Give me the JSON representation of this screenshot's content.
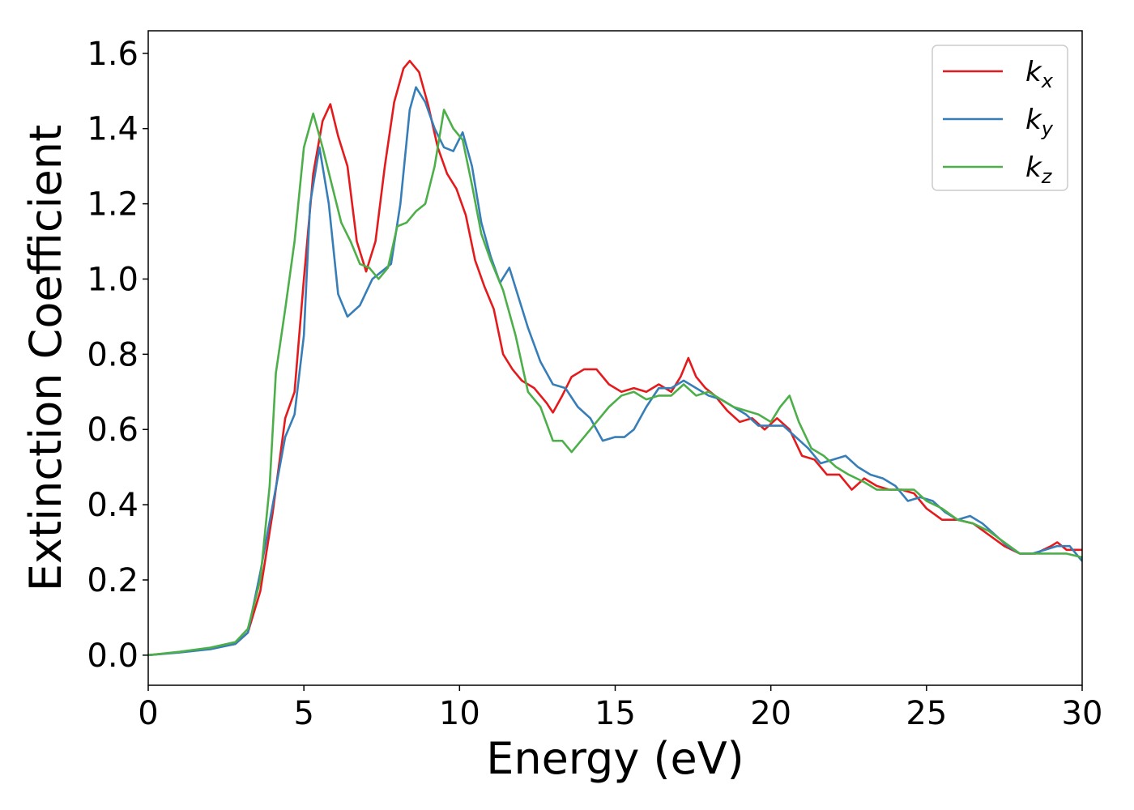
{
  "chart_data": {
    "type": "line",
    "xlabel": "Energy (eV)",
    "ylabel": "Extinction Coefficient",
    "xlim": [
      0,
      30
    ],
    "ylim": [
      -0.08,
      1.66
    ],
    "x_ticks": [
      0,
      5,
      10,
      15,
      20,
      25,
      30
    ],
    "x_tick_labels": [
      "0",
      "5",
      "10",
      "15",
      "20",
      "25",
      "30"
    ],
    "y_ticks": [
      0.0,
      0.2,
      0.4,
      0.6,
      0.8,
      1.0,
      1.2,
      1.4,
      1.6
    ],
    "y_tick_labels": [
      "0.0",
      "0.2",
      "0.4",
      "0.6",
      "0.8",
      "1.0",
      "1.2",
      "1.4",
      "1.6"
    ],
    "grid": false,
    "legend_position": "top-right",
    "series": [
      {
        "name": "k_x",
        "legend_base": "k",
        "legend_sub": "x",
        "color": "#e41a1c",
        "points": [
          [
            0,
            0.0
          ],
          [
            1,
            0.008
          ],
          [
            2,
            0.018
          ],
          [
            2.8,
            0.03
          ],
          [
            3.2,
            0.06
          ],
          [
            3.6,
            0.17
          ],
          [
            4,
            0.38
          ],
          [
            4.4,
            0.63
          ],
          [
            4.7,
            0.7
          ],
          [
            5,
            1.0
          ],
          [
            5.3,
            1.28
          ],
          [
            5.6,
            1.42
          ],
          [
            5.85,
            1.465
          ],
          [
            6.1,
            1.38
          ],
          [
            6.4,
            1.3
          ],
          [
            6.7,
            1.1
          ],
          [
            7,
            1.02
          ],
          [
            7.3,
            1.1
          ],
          [
            7.6,
            1.3
          ],
          [
            7.9,
            1.47
          ],
          [
            8.2,
            1.56
          ],
          [
            8.4,
            1.58
          ],
          [
            8.7,
            1.55
          ],
          [
            9,
            1.46
          ],
          [
            9.3,
            1.35
          ],
          [
            9.6,
            1.28
          ],
          [
            9.9,
            1.24
          ],
          [
            10.2,
            1.17
          ],
          [
            10.5,
            1.05
          ],
          [
            10.8,
            0.98
          ],
          [
            11.1,
            0.92
          ],
          [
            11.4,
            0.8
          ],
          [
            11.7,
            0.76
          ],
          [
            12,
            0.73
          ],
          [
            12.4,
            0.71
          ],
          [
            12.8,
            0.67
          ],
          [
            13,
            0.645
          ],
          [
            13.3,
            0.69
          ],
          [
            13.6,
            0.74
          ],
          [
            14,
            0.76
          ],
          [
            14.4,
            0.76
          ],
          [
            14.8,
            0.72
          ],
          [
            15.2,
            0.7
          ],
          [
            15.6,
            0.71
          ],
          [
            16,
            0.7
          ],
          [
            16.4,
            0.72
          ],
          [
            16.8,
            0.7
          ],
          [
            17.1,
            0.74
          ],
          [
            17.35,
            0.79
          ],
          [
            17.6,
            0.74
          ],
          [
            17.9,
            0.71
          ],
          [
            18.2,
            0.69
          ],
          [
            18.6,
            0.65
          ],
          [
            19,
            0.62
          ],
          [
            19.4,
            0.63
          ],
          [
            19.8,
            0.6
          ],
          [
            20.2,
            0.63
          ],
          [
            20.6,
            0.6
          ],
          [
            21,
            0.53
          ],
          [
            21.4,
            0.52
          ],
          [
            21.8,
            0.48
          ],
          [
            22.2,
            0.48
          ],
          [
            22.6,
            0.44
          ],
          [
            23,
            0.47
          ],
          [
            23.4,
            0.45
          ],
          [
            23.8,
            0.44
          ],
          [
            24.2,
            0.44
          ],
          [
            24.6,
            0.43
          ],
          [
            25,
            0.39
          ],
          [
            25.5,
            0.36
          ],
          [
            26,
            0.36
          ],
          [
            26.5,
            0.35
          ],
          [
            27,
            0.32
          ],
          [
            27.5,
            0.29
          ],
          [
            28,
            0.27
          ],
          [
            28.5,
            0.27
          ],
          [
            29,
            0.29
          ],
          [
            29.2,
            0.3
          ],
          [
            29.5,
            0.28
          ],
          [
            30,
            0.28
          ]
        ]
      },
      {
        "name": "k_y",
        "legend_base": "k",
        "legend_sub": "y",
        "color": "#377eb8",
        "points": [
          [
            0,
            0.0
          ],
          [
            1,
            0.007
          ],
          [
            2,
            0.016
          ],
          [
            2.8,
            0.03
          ],
          [
            3.2,
            0.06
          ],
          [
            3.6,
            0.22
          ],
          [
            4,
            0.4
          ],
          [
            4.4,
            0.58
          ],
          [
            4.7,
            0.64
          ],
          [
            5,
            0.85
          ],
          [
            5.2,
            1.2
          ],
          [
            5.5,
            1.35
          ],
          [
            5.8,
            1.2
          ],
          [
            6.1,
            0.96
          ],
          [
            6.4,
            0.9
          ],
          [
            6.8,
            0.93
          ],
          [
            7.2,
            1.0
          ],
          [
            7.5,
            1.02
          ],
          [
            7.8,
            1.04
          ],
          [
            8.1,
            1.2
          ],
          [
            8.4,
            1.45
          ],
          [
            8.6,
            1.51
          ],
          [
            8.9,
            1.47
          ],
          [
            9.2,
            1.4
          ],
          [
            9.5,
            1.35
          ],
          [
            9.8,
            1.34
          ],
          [
            10.1,
            1.39
          ],
          [
            10.4,
            1.3
          ],
          [
            10.7,
            1.15
          ],
          [
            11,
            1.06
          ],
          [
            11.3,
            0.99
          ],
          [
            11.6,
            1.03
          ],
          [
            11.9,
            0.95
          ],
          [
            12.2,
            0.87
          ],
          [
            12.6,
            0.78
          ],
          [
            13,
            0.72
          ],
          [
            13.4,
            0.71
          ],
          [
            13.8,
            0.66
          ],
          [
            14.2,
            0.63
          ],
          [
            14.6,
            0.57
          ],
          [
            15,
            0.58
          ],
          [
            15.3,
            0.58
          ],
          [
            15.6,
            0.6
          ],
          [
            16,
            0.66
          ],
          [
            16.4,
            0.71
          ],
          [
            16.8,
            0.71
          ],
          [
            17.2,
            0.73
          ],
          [
            17.6,
            0.71
          ],
          [
            18,
            0.69
          ],
          [
            18.4,
            0.68
          ],
          [
            18.8,
            0.66
          ],
          [
            19.2,
            0.64
          ],
          [
            19.6,
            0.61
          ],
          [
            20,
            0.61
          ],
          [
            20.4,
            0.61
          ],
          [
            20.8,
            0.58
          ],
          [
            21.2,
            0.55
          ],
          [
            21.6,
            0.51
          ],
          [
            22,
            0.52
          ],
          [
            22.4,
            0.53
          ],
          [
            22.8,
            0.5
          ],
          [
            23.2,
            0.48
          ],
          [
            23.6,
            0.47
          ],
          [
            24,
            0.45
          ],
          [
            24.4,
            0.41
          ],
          [
            24.8,
            0.42
          ],
          [
            25.2,
            0.41
          ],
          [
            25.6,
            0.38
          ],
          [
            26,
            0.36
          ],
          [
            26.4,
            0.37
          ],
          [
            26.8,
            0.35
          ],
          [
            27.2,
            0.32
          ],
          [
            27.6,
            0.29
          ],
          [
            28,
            0.27
          ],
          [
            28.4,
            0.27
          ],
          [
            28.8,
            0.28
          ],
          [
            29.2,
            0.29
          ],
          [
            29.6,
            0.29
          ],
          [
            30,
            0.25
          ]
        ]
      },
      {
        "name": "k_z",
        "legend_base": "k",
        "legend_sub": "z",
        "color": "#4daf4a",
        "points": [
          [
            0,
            0.0
          ],
          [
            1,
            0.009
          ],
          [
            2,
            0.02
          ],
          [
            2.8,
            0.035
          ],
          [
            3.2,
            0.07
          ],
          [
            3.6,
            0.2
          ],
          [
            3.9,
            0.45
          ],
          [
            4.1,
            0.75
          ],
          [
            4.4,
            0.92
          ],
          [
            4.7,
            1.1
          ],
          [
            5,
            1.35
          ],
          [
            5.3,
            1.44
          ],
          [
            5.6,
            1.35
          ],
          [
            5.9,
            1.25
          ],
          [
            6.2,
            1.15
          ],
          [
            6.5,
            1.1
          ],
          [
            6.8,
            1.04
          ],
          [
            7.1,
            1.03
          ],
          [
            7.4,
            1.0
          ],
          [
            7.7,
            1.03
          ],
          [
            8,
            1.14
          ],
          [
            8.3,
            1.15
          ],
          [
            8.6,
            1.18
          ],
          [
            8.9,
            1.2
          ],
          [
            9.2,
            1.3
          ],
          [
            9.5,
            1.45
          ],
          [
            9.8,
            1.4
          ],
          [
            10.1,
            1.37
          ],
          [
            10.4,
            1.25
          ],
          [
            10.7,
            1.12
          ],
          [
            11,
            1.05
          ],
          [
            11.4,
            0.97
          ],
          [
            11.8,
            0.85
          ],
          [
            12.2,
            0.7
          ],
          [
            12.6,
            0.66
          ],
          [
            13,
            0.57
          ],
          [
            13.3,
            0.57
          ],
          [
            13.6,
            0.54
          ],
          [
            14,
            0.58
          ],
          [
            14.4,
            0.62
          ],
          [
            14.8,
            0.66
          ],
          [
            15.2,
            0.69
          ],
          [
            15.6,
            0.7
          ],
          [
            16,
            0.68
          ],
          [
            16.4,
            0.69
          ],
          [
            16.8,
            0.69
          ],
          [
            17.2,
            0.72
          ],
          [
            17.6,
            0.69
          ],
          [
            18,
            0.7
          ],
          [
            18.4,
            0.68
          ],
          [
            18.8,
            0.66
          ],
          [
            19.2,
            0.65
          ],
          [
            19.6,
            0.64
          ],
          [
            20,
            0.62
          ],
          [
            20.3,
            0.66
          ],
          [
            20.6,
            0.69
          ],
          [
            20.9,
            0.62
          ],
          [
            21.3,
            0.55
          ],
          [
            21.7,
            0.53
          ],
          [
            22.1,
            0.5
          ],
          [
            22.5,
            0.48
          ],
          [
            23,
            0.46
          ],
          [
            23.4,
            0.44
          ],
          [
            23.8,
            0.44
          ],
          [
            24.2,
            0.44
          ],
          [
            24.6,
            0.44
          ],
          [
            25,
            0.41
          ],
          [
            25.5,
            0.39
          ],
          [
            26,
            0.36
          ],
          [
            26.5,
            0.35
          ],
          [
            27,
            0.33
          ],
          [
            27.5,
            0.3
          ],
          [
            28,
            0.27
          ],
          [
            28.5,
            0.27
          ],
          [
            29,
            0.27
          ],
          [
            29.5,
            0.27
          ],
          [
            30,
            0.26
          ]
        ]
      }
    ]
  }
}
